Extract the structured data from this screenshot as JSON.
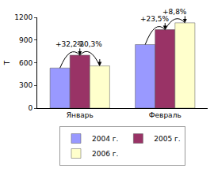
{
  "chart_data": {
    "type": "bar",
    "categories": [
      "Январь",
      "Февраль"
    ],
    "series": [
      {
        "name": "2004 г.",
        "color": "#9999ff",
        "values": [
          530,
          840
        ]
      },
      {
        "name": "2005 г.",
        "color": "#993366",
        "values": [
          700,
          1037
        ]
      },
      {
        "name": "2006 г.",
        "color": "#ffffcc",
        "values": [
          558,
          1128
        ]
      }
    ],
    "y_label": "Т",
    "ylim": [
      0,
      1200
    ],
    "yticks": [
      0,
      300,
      600,
      900,
      1200
    ],
    "grid": false,
    "legend": "bottom",
    "annotations": [
      {
        "text": "+32,2%",
        "category": "Январь",
        "from": "2004 г.",
        "to": "2005 г."
      },
      {
        "text": "-20,3%",
        "category": "Январь",
        "from": "2005 г.",
        "to": "2006 г."
      },
      {
        "text": "+23,5%",
        "category": "Февраль",
        "from": "2004 г.",
        "to": "2005 г."
      },
      {
        "text": "+8,8%",
        "category": "Февраль",
        "from": "2005 г.",
        "to": "2006 г."
      }
    ]
  }
}
